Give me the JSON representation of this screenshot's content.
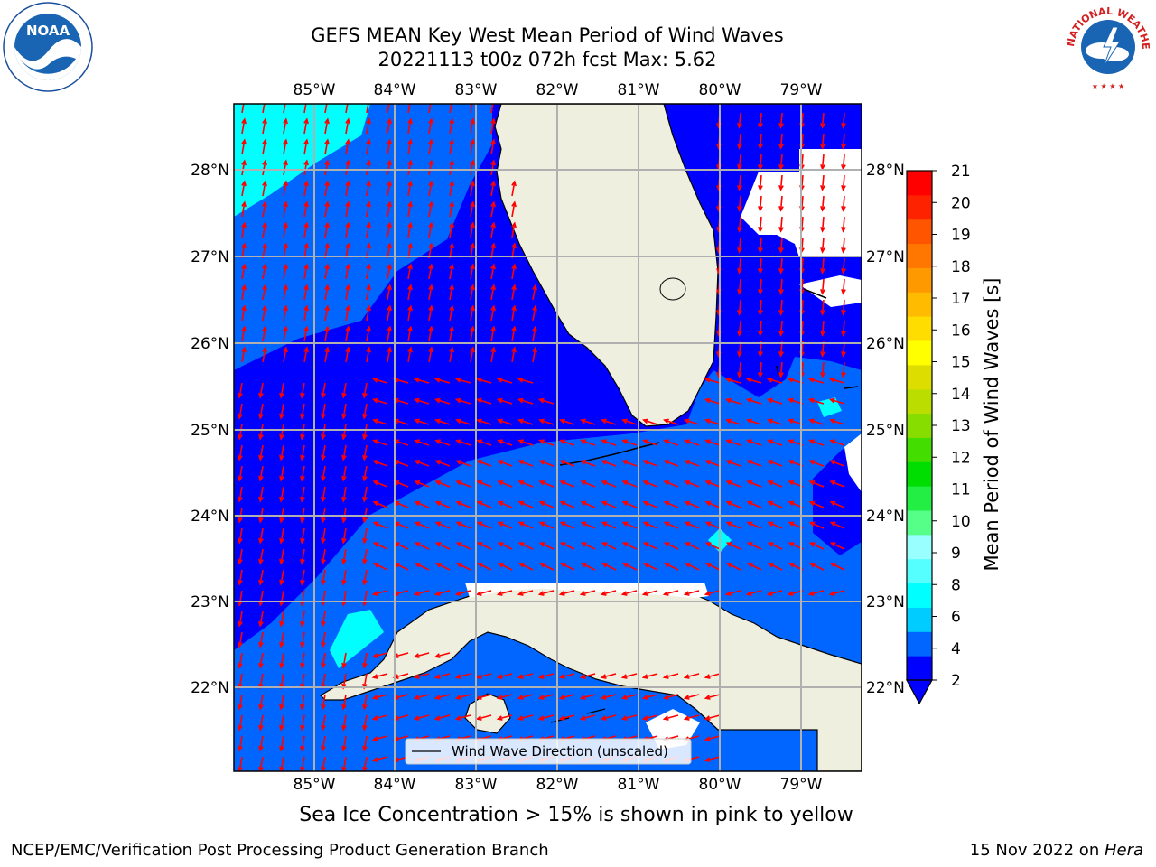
{
  "title": {
    "line1": "GEFS MEAN Key West Mean Period of Wind Waves",
    "line2": "20221113 t00z 072h fcst   Max: 5.62"
  },
  "map": {
    "lon_labels": [
      "85°W",
      "84°W",
      "83°W",
      "82°W",
      "81°W",
      "80°W",
      "79°W"
    ],
    "lat_labels": [
      "28°N",
      "27°N",
      "26°N",
      "25°N",
      "24°N",
      "23°N",
      "22°N"
    ],
    "legend_label": "Wind Wave Direction (unscaled)",
    "land_color": "#efefdf",
    "arrow_color": "#ff0000"
  },
  "colorbar": {
    "label": "Mean Period of Wind Waves [s]",
    "ticks": [
      "21",
      "20",
      "19",
      "18",
      "17",
      "16",
      "15",
      "14",
      "13",
      "12",
      "11",
      "10",
      "9",
      "8",
      "6",
      "4",
      "2"
    ],
    "colors": [
      "#0000ff",
      "#0066ff",
      "#00ccff",
      "#00ffff",
      "#55ffff",
      "#99ffff",
      "#55ff88",
      "#22ee44",
      "#00dd00",
      "#44dd00",
      "#88dd00",
      "#bbdd00",
      "#dddd00",
      "#ffff00",
      "#ffdd00",
      "#ffbb00",
      "#ff9900",
      "#ff7700",
      "#ff5500",
      "#ff2200",
      "#ff0000"
    ]
  },
  "note": "Sea Ice Concentration > 15% is shown in pink to yellow",
  "footer": {
    "left": "NCEP/EMC/Verification Post Processing Product Generation Branch",
    "date": "15 Nov 2022 on ",
    "host": "Hera"
  },
  "logos": {
    "noaa_text": "NOAA",
    "nws_text": "NATIONAL WEATHER SERVICE"
  }
}
